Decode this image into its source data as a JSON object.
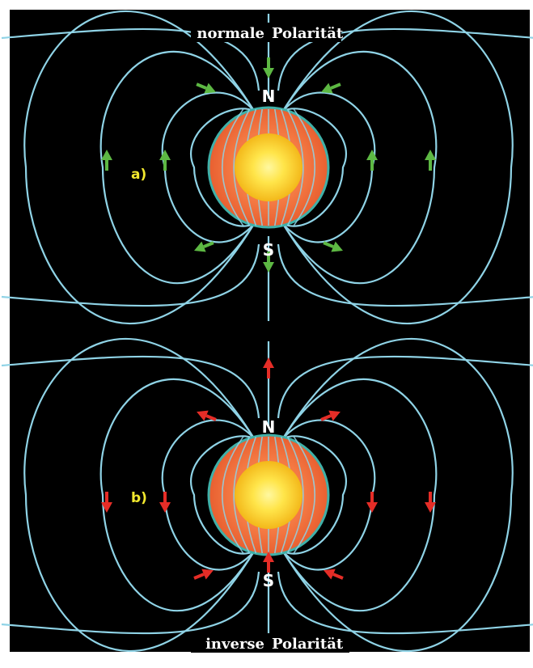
{
  "top_panel": {
    "label": "a)",
    "north": "N",
    "south": "S",
    "caption_left": "normale",
    "caption_right": "Polarität",
    "arrow_color": "#5db843"
  },
  "bottom_panel": {
    "label": "b)",
    "north": "N",
    "south": "S",
    "caption_left": "inverse",
    "caption_right": "Polarität",
    "arrow_color": "#e52d27"
  },
  "colors": {
    "background": "#000000",
    "field_lines": "#8fd3e6",
    "mantle": "#f0703c",
    "mantle_edge": "#3fb0a8",
    "core_outer": "#f6c21b",
    "core_inner": "#fff26b"
  }
}
